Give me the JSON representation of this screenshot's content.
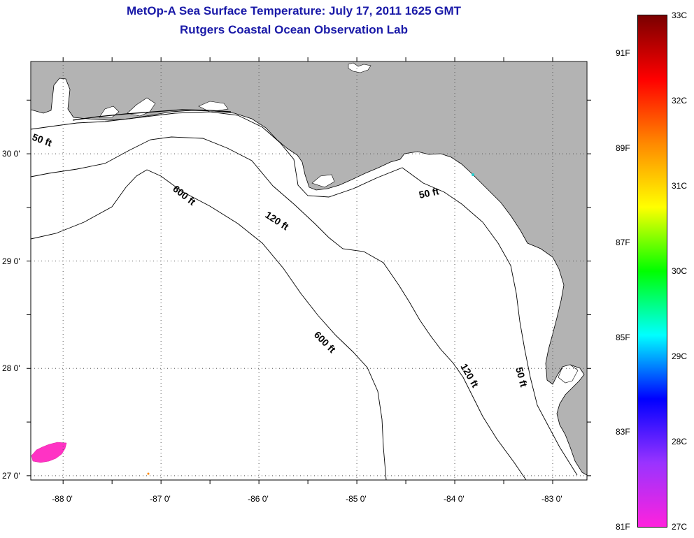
{
  "title": {
    "line1": "MetOp-A Sea Surface Temperature:  July 17, 2011 1625 GMT",
    "line2": "Rutgers Coastal Ocean Observation Lab"
  },
  "map": {
    "lon_range": [
      -88.33,
      -82.65
    ],
    "lat_range": [
      26.96,
      30.86
    ],
    "lon_ticks": [
      "-88 0'",
      "-87 0'",
      "-86 0'",
      "-85 0'",
      "-84 0'",
      "-83 0'"
    ],
    "lat_ticks": [
      "30 0'",
      "29 0'",
      "28 0'",
      "27 0'"
    ],
    "land_color": "#b3b3b3",
    "water_color": "#ffffff",
    "grid": "dotted",
    "isobath_labels": {
      "west_50": "50 ft",
      "upper_600": "600 ft",
      "upper_120": "120 ft",
      "east_50": "50 ft",
      "lower_600": "600 ft",
      "lower_120": "120 ft",
      "lower_50": "50 ft"
    },
    "sst_patch_color": "#ff33c4"
  },
  "colorbar": {
    "gradient_stops": [
      "#7a0000",
      "#ff0000",
      "#ff8800",
      "#ffff00",
      "#00ff00",
      "#00ffff",
      "#0000ff",
      "#9933ff",
      "#ff22dd"
    ],
    "celsius": [
      "33C",
      "32C",
      "31C",
      "30C",
      "29C",
      "28C",
      "27C"
    ],
    "fahrenheit": [
      "91F",
      "89F",
      "87F",
      "85F",
      "83F",
      "81F"
    ]
  }
}
